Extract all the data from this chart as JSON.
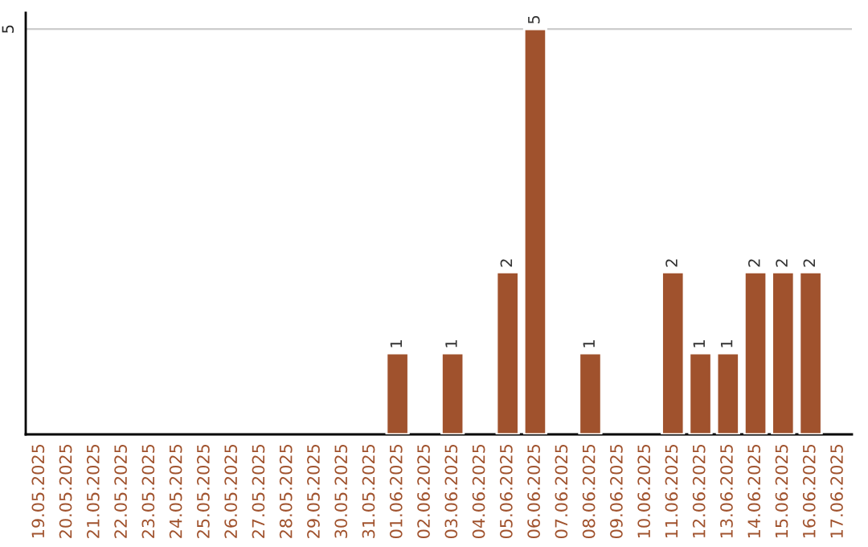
{
  "chart_data": {
    "type": "bar",
    "categories": [
      "19.05.2025",
      "20.05.2025",
      "21.05.2025",
      "22.05.2025",
      "23.05.2025",
      "24.05.2025",
      "25.05.2025",
      "26.05.2025",
      "27.05.2025",
      "28.05.2025",
      "29.05.2025",
      "30.05.2025",
      "31.05.2025",
      "01.06.2025",
      "02.06.2025",
      "03.06.2025",
      "04.06.2025",
      "05.06.2025",
      "06.06.2025",
      "07.06.2025",
      "08.06.2025",
      "09.06.2025",
      "10.06.2025",
      "11.06.2025",
      "12.06.2025",
      "13.06.2025",
      "14.06.2025",
      "15.06.2025",
      "16.06.2025",
      "17.06.2025"
    ],
    "series": [
      {
        "color": "#a0522d",
        "values": [
          null,
          null,
          null,
          null,
          null,
          null,
          null,
          null,
          null,
          null,
          null,
          null,
          null,
          1,
          null,
          1,
          null,
          2,
          5,
          null,
          1,
          null,
          null,
          2,
          1,
          1,
          2,
          2,
          2,
          null
        ]
      }
    ],
    "data_labels": true,
    "ylim": [
      0,
      5.2
    ],
    "yticks": [
      5
    ],
    "grid": "y"
  }
}
